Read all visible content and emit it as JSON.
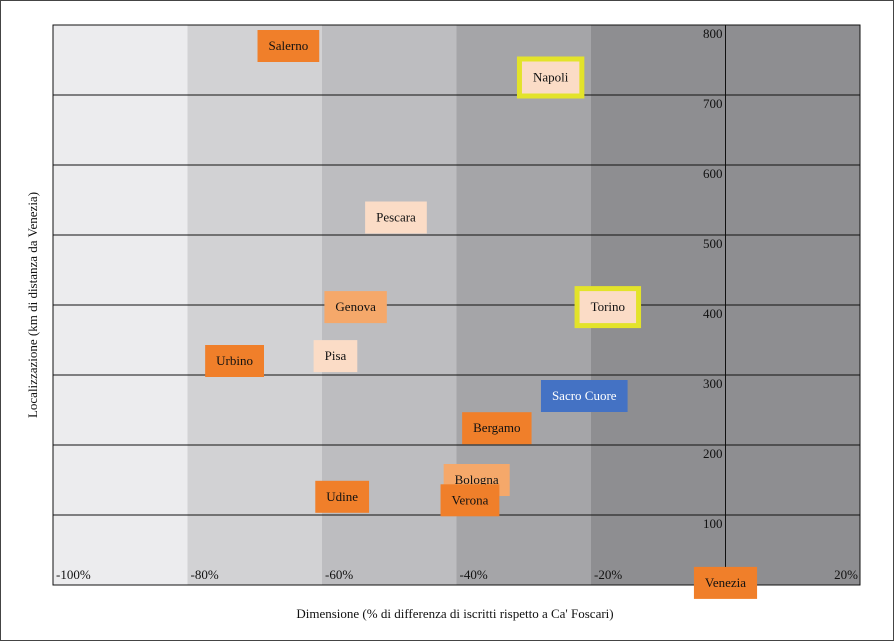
{
  "chart_data": {
    "type": "scatter",
    "x_label": "Dimensione (% di differenza di iscritti rispetto a Ca' Foscari)",
    "y_label": "Localizzazione (km di distanza da Venezia)",
    "xlim": [
      -100,
      20
    ],
    "xticks": [
      {
        "value": -100,
        "label": "-100%"
      },
      {
        "value": -80,
        "label": "-80%"
      },
      {
        "value": -60,
        "label": "-60%"
      },
      {
        "value": -40,
        "label": "-40%"
      },
      {
        "value": -20,
        "label": "-20%"
      },
      {
        "value": 20,
        "label": "20%"
      }
    ],
    "ylim": [
      0,
      800
    ],
    "yticks": [
      100,
      200,
      300,
      400,
      500,
      600,
      700,
      800
    ],
    "grid": true,
    "band_colors": [
      "#ececee",
      "#d2d2d4",
      "#bdbdc0",
      "#a5a5a8",
      "#8e8e91"
    ],
    "highlight_color": "#e3e32a",
    "points": [
      {
        "label": "Salerno",
        "x": -65,
        "y": 770,
        "color": "#f07f2a"
      },
      {
        "label": "Napoli",
        "x": -26,
        "y": 725,
        "color": "#fbdcc6",
        "highlight": true
      },
      {
        "label": "Pescara",
        "x": -49,
        "y": 525,
        "color": "#fbdcc6"
      },
      {
        "label": "Genova",
        "x": -55,
        "y": 397,
        "color": "#f5a86a"
      },
      {
        "label": "Torino",
        "x": -17.5,
        "y": 397,
        "color": "#fbdcc6",
        "highlight": true
      },
      {
        "label": "Urbino",
        "x": -73,
        "y": 320,
        "color": "#f07f2a"
      },
      {
        "label": "Pisa",
        "x": -58,
        "y": 327,
        "color": "#fbdcc6"
      },
      {
        "label": "Sacro Cuore",
        "x": -21,
        "y": 270,
        "color": "#4472c4",
        "text_color": "#ffffff"
      },
      {
        "label": "Bergamo",
        "x": -34,
        "y": 224,
        "color": "#f07f2a"
      },
      {
        "label": "Bologna",
        "x": -37,
        "y": 150,
        "color": "#f5a86a"
      },
      {
        "label": "Udine",
        "x": -57,
        "y": 126,
        "color": "#f07f2a"
      },
      {
        "label": "Verona",
        "x": -38,
        "y": 121,
        "color": "#f07f2a"
      },
      {
        "label": "Venezia",
        "x": 0,
        "y": 3,
        "color": "#f07f2a"
      }
    ]
  }
}
